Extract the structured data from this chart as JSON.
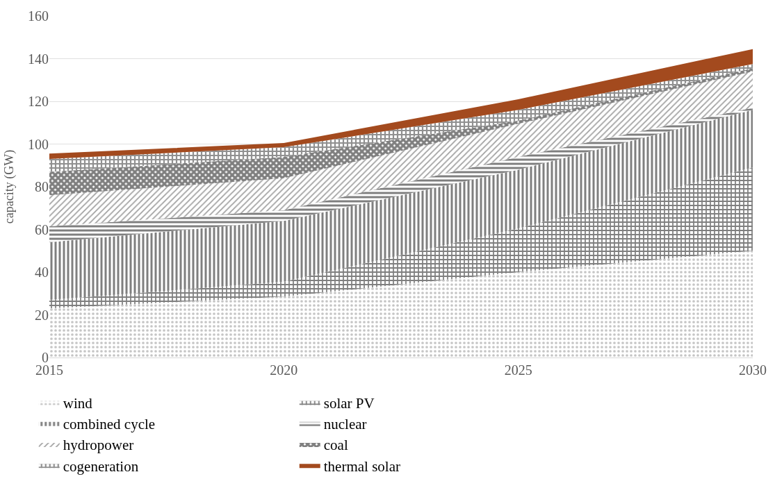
{
  "chart_data": {
    "type": "area",
    "stacked": true,
    "ylabel": "capacity (GW)",
    "x": [
      2015,
      2020,
      2025,
      2030
    ],
    "xlim": [
      2015,
      2030
    ],
    "xticks": [
      2015,
      2020,
      2025,
      2030
    ],
    "ylim": [
      0,
      160
    ],
    "yticks": [
      0,
      20,
      40,
      60,
      80,
      100,
      120,
      140,
      160
    ],
    "grid": "y",
    "legend": "bottom",
    "marker": "none",
    "series": [
      {
        "name": "wind",
        "color": "#8c8c8c",
        "values": [
          23,
          28.5,
          40,
          50
        ]
      },
      {
        "name": "solar PV",
        "color": "#000000",
        "values": [
          4,
          7,
          20.5,
          39
        ]
      },
      {
        "name": "combined cycle",
        "color": "#000000",
        "values": [
          27,
          28.5,
          27.5,
          27
        ]
      },
      {
        "name": "nuclear",
        "color": "#000000",
        "values": [
          7.5,
          5,
          6,
          1
        ]
      },
      {
        "name": "hydropower",
        "color": "#444444",
        "values": [
          14.5,
          15,
          15.5,
          17
        ]
      },
      {
        "name": "coal",
        "color": "#000000",
        "values": [
          11,
          10,
          1.5,
          1.5
        ]
      },
      {
        "name": "cogeneration",
        "color": "#222222",
        "values": [
          6,
          4.5,
          5,
          2
        ]
      },
      {
        "name": "thermal solar",
        "color": "#a34a1e",
        "values": [
          2.5,
          2,
          5,
          7
        ]
      }
    ]
  }
}
